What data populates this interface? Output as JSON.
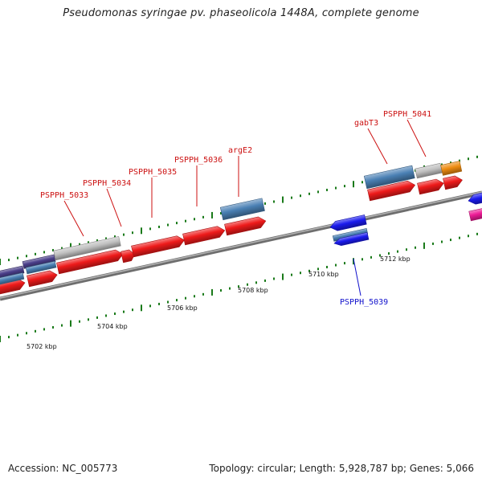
{
  "title": "Pseudomonas syringae pv. phaseolicola 1448A, complete genome",
  "footer": {
    "accession": "Accession: NC_005773",
    "summary": "Topology: circular; Length: 5,928,787 bp; Genes: 5,066"
  },
  "colors": {
    "forward_cds": "#ee1a1a",
    "reverse_cds": "#1a1aee",
    "steelblue_gene": "#4a80b4",
    "gray_gene": "#c0c0c0",
    "purple_gene": "#4a3e8a",
    "orange_gene": "#ee8c10",
    "magenta_gene": "#ee1c96",
    "backbone": "#888888",
    "tick": "#1a7a1a",
    "forward_label": "#cc1111",
    "reverse_label": "#1111cc"
  },
  "ruler_labels": [
    "5702 kbp",
    "5704 kbp",
    "5706 kbp",
    "5708 kbp",
    "5710 kbp",
    "5712 kbp"
  ],
  "gene_labels": [
    {
      "label": "PSPPH_5033",
      "strand": "forward"
    },
    {
      "label": "PSPPH_5034",
      "strand": "forward"
    },
    {
      "label": "PSPPH_5035",
      "strand": "forward"
    },
    {
      "label": "PSPPH_5036",
      "strand": "forward"
    },
    {
      "label": "argE2",
      "strand": "forward"
    },
    {
      "label": "gabT3",
      "strand": "forward"
    },
    {
      "label": "PSPPH_5041",
      "strand": "forward"
    },
    {
      "label": "PSPPH_5039",
      "strand": "reverse"
    }
  ]
}
